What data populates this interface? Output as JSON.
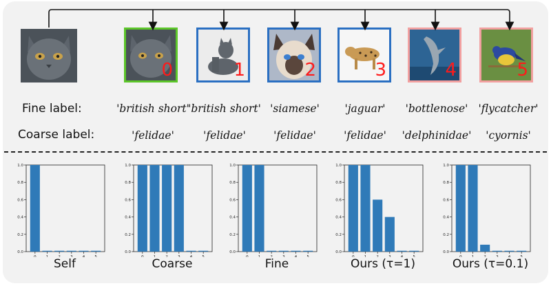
{
  "query_image": {
    "name": "query-cat",
    "depicts": "british shorthair cat"
  },
  "images": [
    {
      "index": "0",
      "border": "#5cc629",
      "depicts": "british shorthair cat",
      "bg": "#3d4a55"
    },
    {
      "index": "1",
      "border": "#2a6fc2",
      "depicts": "british shorthair cat sitting",
      "bg": "#e6e6e6"
    },
    {
      "index": "2",
      "border": "#2a6fc2",
      "depicts": "siamese cat",
      "bg": "#a9b4c6"
    },
    {
      "index": "3",
      "border": "#2a6fc2",
      "depicts": "jaguar",
      "bg": "#f4f4f4"
    },
    {
      "index": "4",
      "border": "#f2a0a0",
      "depicts": "bottlenose dolphin",
      "bg": "#2c5c86"
    },
    {
      "index": "5",
      "border": "#f2a0a0",
      "depicts": "flycatcher bird",
      "bg": "#5f8a3c"
    }
  ],
  "labels": {
    "fine_row_label": "Fine label:",
    "coarse_row_label": "Coarse label:",
    "fine": [
      "'british short'",
      "'british short'",
      "'siamese'",
      "'jaguar'",
      "'bottlenose'",
      "'flycatcher'"
    ],
    "coarse": [
      "'felidae'",
      "'felidae'",
      "'felidae'",
      "'felidae'",
      "'delphinidae'",
      "'cyornis'"
    ]
  },
  "colors": {
    "bar": "#2f7ab8",
    "arrow": "#111111"
  },
  "chart_data": [
    {
      "type": "bar",
      "title": "Self",
      "categories": [
        "0",
        "1",
        "2",
        "3",
        "4",
        "5"
      ],
      "values": [
        1.0,
        0.01,
        0.01,
        0.01,
        0.01,
        0.01
      ],
      "ylim": [
        0,
        1.0
      ],
      "yticks": [
        "0.0",
        "0.2",
        "0.4",
        "0.6",
        "0.8",
        "1.0"
      ]
    },
    {
      "type": "bar",
      "title": "Coarse",
      "categories": [
        "0",
        "1",
        "2",
        "3",
        "4",
        "5"
      ],
      "values": [
        1.0,
        1.0,
        1.0,
        1.0,
        0.01,
        0.01
      ],
      "ylim": [
        0,
        1.0
      ],
      "yticks": [
        "0.0",
        "0.2",
        "0.4",
        "0.6",
        "0.8",
        "1.0"
      ]
    },
    {
      "type": "bar",
      "title": "Fine",
      "categories": [
        "0",
        "1",
        "2",
        "3",
        "4",
        "5"
      ],
      "values": [
        1.0,
        1.0,
        0.01,
        0.01,
        0.01,
        0.01
      ],
      "ylim": [
        0,
        1.0
      ],
      "yticks": [
        "0.0",
        "0.2",
        "0.4",
        "0.6",
        "0.8",
        "1.0"
      ]
    },
    {
      "type": "bar",
      "title": "Ours (τ=1)",
      "categories": [
        "0",
        "1",
        "2",
        "3",
        "4",
        "5"
      ],
      "values": [
        1.0,
        1.0,
        0.6,
        0.4,
        0.01,
        0.01
      ],
      "ylim": [
        0,
        1.0
      ],
      "yticks": [
        "0.0",
        "0.2",
        "0.4",
        "0.6",
        "0.8",
        "1.0"
      ]
    },
    {
      "type": "bar",
      "title": "Ours (τ=0.1)",
      "categories": [
        "0",
        "1",
        "2",
        "3",
        "4",
        "5"
      ],
      "values": [
        1.0,
        1.0,
        0.08,
        0.01,
        0.01,
        0.01
      ],
      "ylim": [
        0,
        1.0
      ],
      "yticks": [
        "0.0",
        "0.2",
        "0.4",
        "0.6",
        "0.8",
        "1.0"
      ]
    }
  ]
}
